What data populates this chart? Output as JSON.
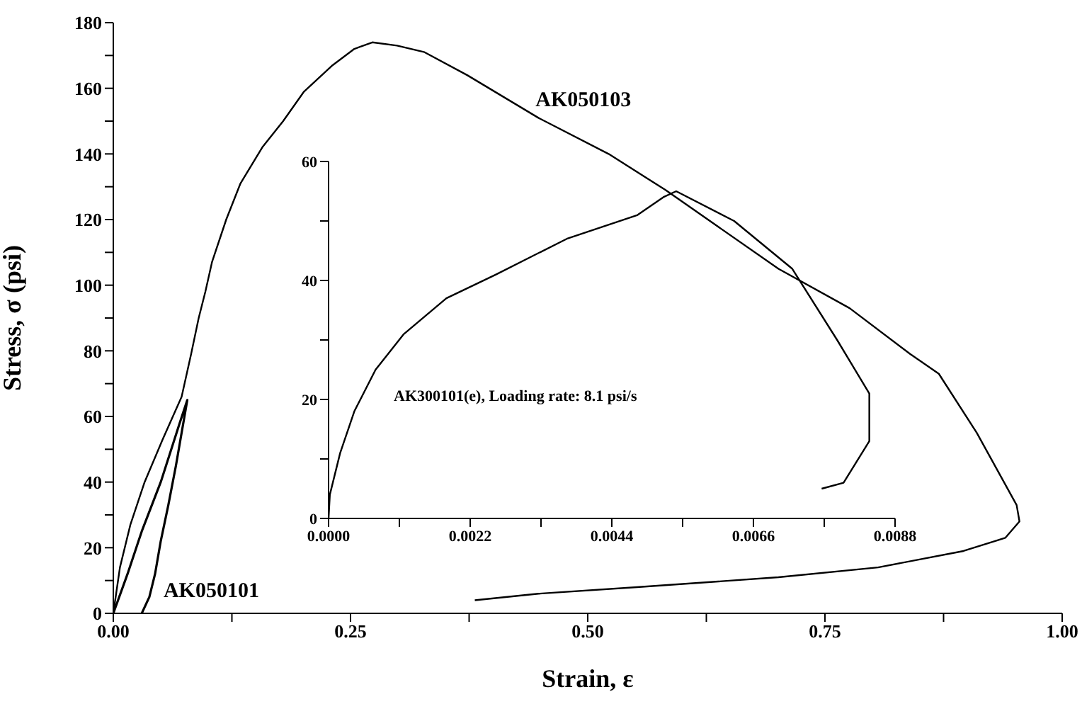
{
  "chart_data": [
    {
      "type": "line",
      "xlabel": "Strain, ε",
      "ylabel": "Stress, σ (psi)",
      "xlim": [
        0,
        1
      ],
      "ylim": [
        0,
        180
      ],
      "xticks": [
        {
          "value": 0,
          "label": "0.00"
        },
        {
          "value": 0.125,
          "label": null
        },
        {
          "value": 0.25,
          "label": "0.25"
        },
        {
          "value": 0.375,
          "label": null
        },
        {
          "value": 0.5,
          "label": "0.50"
        },
        {
          "value": 0.625,
          "label": null
        },
        {
          "value": 0.75,
          "label": "0.75"
        },
        {
          "value": 0.875,
          "label": null
        },
        {
          "value": 1,
          "label": "1.00"
        }
      ],
      "yticks": [
        0,
        {
          "value": 10,
          "label": null
        },
        20,
        {
          "value": 30,
          "label": null
        },
        40,
        {
          "value": 50,
          "label": null
        },
        60,
        {
          "value": 70,
          "label": null
        },
        80,
        {
          "value": 90,
          "label": null
        },
        100,
        {
          "value": 110,
          "label": null
        },
        120,
        {
          "value": 130,
          "label": null
        },
        140,
        {
          "value": 150,
          "label": null
        },
        160,
        {
          "value": 170,
          "label": null
        },
        180
      ],
      "grid": false,
      "legend": false,
      "marker": "none",
      "line_style": "solid",
      "series": [
        {
          "color": "#000000",
          "x": [
            0,
            0.007,
            0.018,
            0.033,
            0.052,
            0.072,
            0.082,
            0.09,
            0.097,
            0.104,
            0.119,
            0.134,
            0.157,
            0.179,
            0.201,
            0.231,
            0.254,
            0.273,
            0.299,
            0.328,
            0.373,
            0.448,
            0.522,
            0.582,
            0.701,
            0.776,
            0.84,
            0.87,
            0.91,
            0.952,
            0.955,
            0.94,
            0.896,
            0.806,
            0.701,
            0.552,
            0.448,
            0.381
          ],
          "values": [
            0,
            14,
            27,
            40,
            53,
            66,
            79,
            90,
            98,
            107,
            120,
            131,
            142,
            150,
            159,
            167,
            172,
            174,
            173,
            171,
            164,
            151,
            140,
            129,
            105,
            93,
            79,
            73,
            55,
            33,
            28,
            23,
            19,
            14,
            11,
            8,
            6,
            4
          ]
        },
        {
          "color": "#000000",
          "x": [
            0,
            0.015,
            0.03,
            0.05,
            0.07,
            0.078,
            0.075,
            0.066,
            0.058,
            0.05,
            0.044,
            0.038,
            0.03
          ],
          "values": [
            0,
            12,
            25,
            40,
            58,
            65,
            60,
            45,
            33,
            22,
            12,
            5,
            0
          ]
        }
      ],
      "annotations": [
        {
          "text": "AK050103",
          "x": 0.448,
          "y": 151
        },
        {
          "text": "AK050101",
          "x": 0.038,
          "y": 5
        }
      ]
    },
    {
      "type": "line",
      "xlim": [
        0,
        0.0088
      ],
      "ylim": [
        0,
        60
      ],
      "xticks": [
        {
          "value": 0,
          "label": "0.0000"
        },
        {
          "value": 0.0011,
          "label": null
        },
        {
          "value": 0.0022,
          "label": "0.0022"
        },
        {
          "value": 0.0033,
          "label": null
        },
        {
          "value": 0.0044,
          "label": "0.0044"
        },
        {
          "value": 0.0055,
          "label": null
        },
        {
          "value": 0.0066,
          "label": "0.0066"
        },
        {
          "value": 0.0077,
          "label": null
        },
        {
          "value": 0.0088,
          "label": "0.0088"
        }
      ],
      "yticks": [
        0,
        {
          "value": 10,
          "label": null
        },
        20,
        {
          "value": 30,
          "label": null
        },
        40,
        {
          "value": 50,
          "label": null
        },
        60
      ],
      "grid": false,
      "legend": false,
      "marker": "none",
      "line_style": "solid",
      "series": [
        {
          "color": "#000000",
          "x": [
            0,
            2e-05,
            0.00018,
            0.0004,
            0.00073,
            0.00117,
            0.00183,
            0.0026,
            0.0037,
            0.0048,
            0.0052,
            0.0054,
            0.0063,
            0.0072,
            0.0079,
            0.0084,
            0.0084,
            0.008,
            0.00766
          ],
          "values": [
            0,
            4,
            11,
            18,
            25,
            31,
            37,
            41,
            47,
            51,
            54,
            55,
            50,
            42,
            30,
            21,
            13,
            6,
            5
          ]
        }
      ],
      "annotations": [
        "AK300101(e), Loading rate: 8.1 psi/s"
      ]
    }
  ]
}
